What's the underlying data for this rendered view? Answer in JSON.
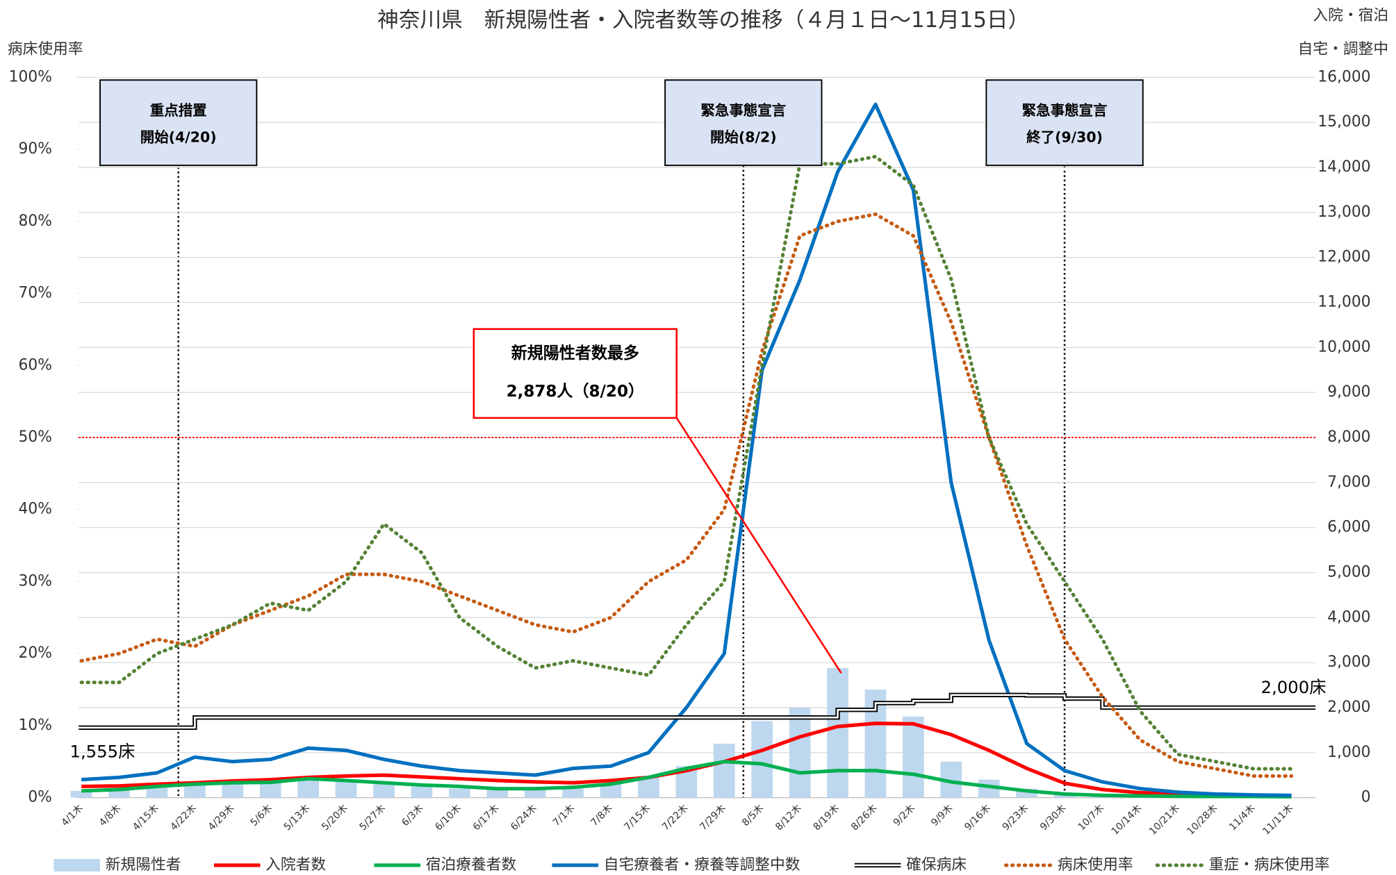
{
  "chart_data": {
    "type": "combo",
    "title": "神奈川県　新規陽性者・入院者数等の推移（４月１日～11月15日）",
    "ylabel": "病床使用率",
    "y2label": [
      "入院・宿泊",
      "自宅・調整中"
    ],
    "categories": [
      "4/1木",
      "4/8木",
      "4/15木",
      "4/22木",
      "4/29木",
      "5/6木",
      "5/13木",
      "5/20木",
      "5/27木",
      "6/3木",
      "6/10木",
      "6/17木",
      "6/24木",
      "7/1木",
      "7/8木",
      "7/15木",
      "7/22木",
      "7/29木",
      "8/5木",
      "8/12木",
      "8/19木",
      "8/26木",
      "9/2木",
      "9/9木",
      "9/16木",
      "9/23木",
      "9/30木",
      "10/7木",
      "10/14木",
      "10/21木",
      "10/28木",
      "11/4木",
      "11/11木"
    ],
    "ylim": [
      0,
      100
    ],
    "yticks": [
      {
        "value": 0,
        "label": "0%"
      },
      {
        "value": 10,
        "label": "10%"
      },
      {
        "value": 20,
        "label": "20%"
      },
      {
        "value": 30,
        "label": "30%"
      },
      {
        "value": 40,
        "label": "40%"
      },
      {
        "value": 50,
        "label": "50%"
      },
      {
        "value": 60,
        "label": "60%"
      },
      {
        "value": 70,
        "label": "70%"
      },
      {
        "value": 80,
        "label": "80%"
      },
      {
        "value": 90,
        "label": "90%"
      },
      {
        "value": 100,
        "label": "100%"
      }
    ],
    "y2lim": [
      0,
      16000
    ],
    "y2ticks": [
      0,
      {
        "value": 1000,
        "label": "1,000"
      },
      {
        "value": 2000,
        "label": "2,000"
      },
      {
        "value": 3000,
        "label": "3,000"
      },
      {
        "value": 4000,
        "label": "4,000"
      },
      {
        "value": 5000,
        "label": "5,000"
      },
      {
        "value": 6000,
        "label": "6,000"
      },
      {
        "value": 7000,
        "label": "7,000"
      },
      {
        "value": 8000,
        "label": "8,000"
      },
      {
        "value": 9000,
        "label": "9,000"
      },
      {
        "value": 10000,
        "label": "10,000"
      },
      {
        "value": 11000,
        "label": "11,000"
      },
      {
        "value": 12000,
        "label": "12,000"
      },
      {
        "value": 13000,
        "label": "13,000"
      },
      {
        "value": 14000,
        "label": "14,000"
      },
      {
        "value": 15000,
        "label": "15,000"
      },
      {
        "value": 16000,
        "label": "16,000"
      }
    ],
    "grid": true,
    "reference_line": {
      "value": 50,
      "color": "#ff0000"
    },
    "series": [
      {
        "name": "新規陽性者",
        "kind": "bar",
        "axis": "y2",
        "color": "#bdd7ee",
        "values": [
          150,
          200,
          250,
          280,
          300,
          350,
          420,
          350,
          300,
          250,
          200,
          180,
          180,
          200,
          300,
          450,
          700,
          1200,
          1700,
          2000,
          2878,
          2400,
          1800,
          800,
          400,
          200,
          100,
          60,
          40,
          25,
          20,
          15,
          15
        ]
      },
      {
        "name": "入院者数",
        "kind": "line",
        "axis": "y2",
        "color": "#ff0000",
        "values": [
          250,
          260,
          300,
          330,
          370,
          400,
          450,
          480,
          500,
          460,
          420,
          380,
          350,
          330,
          380,
          450,
          600,
          800,
          1050,
          1350,
          1580,
          1650,
          1640,
          1400,
          1050,
          650,
          320,
          180,
          110,
          80,
          60,
          40,
          35
        ]
      },
      {
        "name": "宿泊療養者数",
        "kind": "line",
        "axis": "y2",
        "color": "#00b050",
        "values": [
          150,
          180,
          250,
          300,
          330,
          340,
          420,
          380,
          330,
          280,
          250,
          200,
          200,
          230,
          300,
          450,
          650,
          800,
          750,
          550,
          600,
          600,
          520,
          350,
          250,
          150,
          80,
          50,
          40,
          30,
          25,
          25,
          20
        ]
      },
      {
        "name": "自宅療養者・療養等調整中数",
        "kind": "line",
        "axis": "y2",
        "color": "#0070c0",
        "values": [
          400,
          450,
          550,
          900,
          800,
          850,
          1100,
          1050,
          850,
          700,
          600,
          550,
          500,
          650,
          700,
          1000,
          2000,
          3200,
          9500,
          11500,
          13900,
          15400,
          13500,
          7000,
          3500,
          1200,
          600,
          350,
          200,
          120,
          80,
          60,
          50
        ]
      },
      {
        "name": "確保病床",
        "kind": "double",
        "axis": "y2",
        "color": "#000000",
        "values": [
          1555,
          1555,
          1555,
          1780,
          1780,
          1780,
          1780,
          1780,
          1780,
          1780,
          1780,
          1780,
          1780,
          1780,
          1780,
          1780,
          1780,
          1780,
          1780,
          1780,
          1950,
          2100,
          2150,
          2280,
          2280,
          2270,
          2200,
          2000,
          2000,
          2000,
          2000,
          2000,
          2000
        ],
        "value_labels": {
          "0": "1,555床",
          "32": "2,000床"
        }
      },
      {
        "name": "病床使用率",
        "kind": "dotted",
        "axis": "y",
        "color": "#c55a11",
        "values": [
          19,
          20,
          22,
          21,
          24,
          26,
          28,
          31,
          31,
          30,
          28,
          26,
          24,
          23,
          25,
          30,
          33,
          40,
          62,
          78,
          80,
          81,
          78,
          66,
          50,
          35,
          22,
          14,
          8,
          5,
          4,
          3,
          3
        ]
      },
      {
        "name": "重症・病床使用率",
        "kind": "dotted",
        "axis": "y",
        "color": "#548235",
        "values": [
          16,
          16,
          20,
          22,
          24,
          27,
          26,
          30,
          38,
          34,
          25,
          21,
          18,
          19,
          18,
          17,
          24,
          30,
          60,
          88,
          88,
          89,
          85,
          72,
          50,
          38,
          30,
          22,
          12,
          6,
          5,
          4,
          4
        ]
      }
    ],
    "events": [
      {
        "lines": [
          "重点措置",
          "開始(4/20)"
        ]
      },
      {
        "lines": [
          "緊急事態宣言",
          "開始(8/2)"
        ]
      },
      {
        "lines": [
          "緊急事態宣言",
          "終了(9/30)"
        ]
      }
    ],
    "peak_annotation": {
      "lines": [
        "新規陽性者数最多",
        "2,878人（8/20）"
      ]
    }
  }
}
